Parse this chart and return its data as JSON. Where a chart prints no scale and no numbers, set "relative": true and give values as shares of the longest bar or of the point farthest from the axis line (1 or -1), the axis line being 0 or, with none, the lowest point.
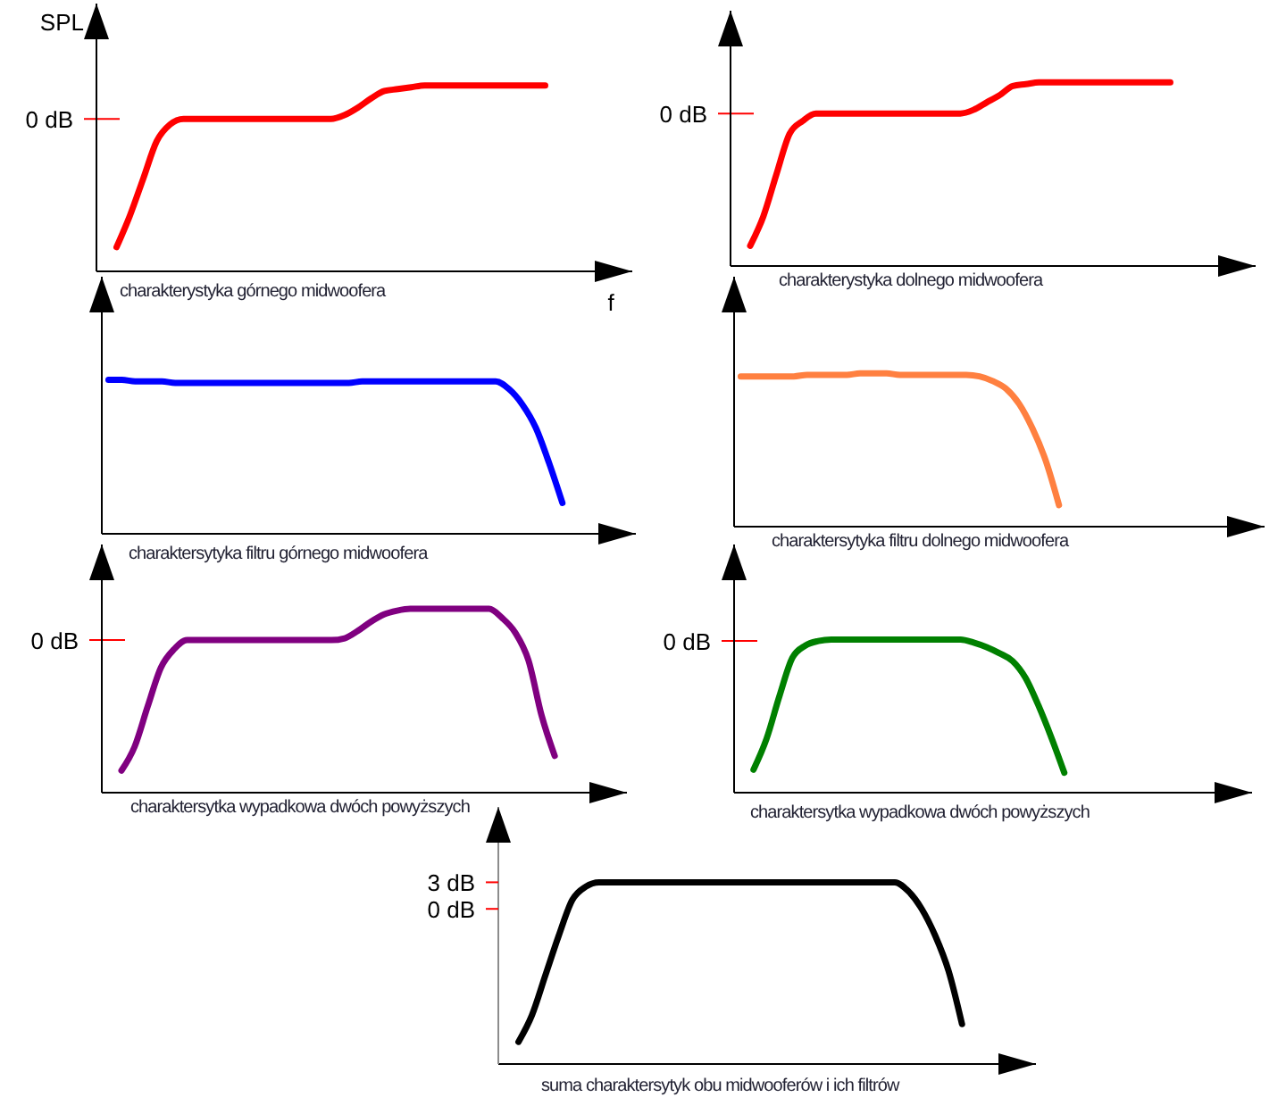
{
  "chart_data": [
    {
      "type": "line",
      "title": "charakterystyka górnego midwoofera",
      "xlabel": "f",
      "ylabel": "SPL",
      "relative": true,
      "categories": [
        null,
        null,
        null,
        null,
        null,
        null,
        null,
        null,
        null,
        null,
        null,
        null,
        null,
        null,
        null,
        null,
        null,
        null,
        null,
        null,
        null,
        null,
        null,
        null,
        null,
        null,
        null,
        null,
        null,
        null,
        null,
        null,
        null,
        null,
        null,
        null,
        null,
        null,
        null,
        null
      ],
      "series": [
        {
          "color": "#ff0000",
          "values": [
            null,
            0.13,
            0.3,
            0.5,
            0.7,
            0.79,
            0.82,
            0.82,
            0.82,
            0.82,
            0.82,
            0.82,
            0.82,
            0.82,
            0.82,
            0.82,
            0.82,
            0.82,
            0.84,
            0.88,
            0.93,
            0.97,
            0.98,
            0.99,
            1,
            1,
            1,
            1,
            1,
            1,
            1,
            1,
            1,
            1,
            null,
            null,
            null,
            null,
            null,
            null
          ]
        }
      ],
      "ref_lines": [
        {
          "axis": "y",
          "value": 0.82,
          "label": "0 dB",
          "color": "#ff0000"
        }
      ]
    },
    {
      "type": "line",
      "title": "charakterystyka dolnego midwoofera",
      "relative": true,
      "categories": [
        null,
        null,
        null,
        null,
        null,
        null,
        null,
        null,
        null,
        null,
        null,
        null,
        null,
        null,
        null,
        null,
        null,
        null,
        null,
        null,
        null,
        null,
        null,
        null,
        null,
        null,
        null,
        null,
        null,
        null,
        null,
        null,
        null,
        null,
        null,
        null,
        null,
        null,
        null,
        null
      ],
      "series": [
        {
          "color": "#ff0000",
          "values": [
            null,
            0.11,
            0.27,
            0.5,
            0.72,
            0.79,
            0.83,
            0.83,
            0.83,
            0.83,
            0.83,
            0.83,
            0.83,
            0.83,
            0.83,
            0.83,
            0.83,
            0.83,
            0.85,
            0.89,
            0.93,
            0.98,
            0.99,
            1,
            1,
            1,
            1,
            1,
            1,
            1,
            1,
            1,
            1,
            1,
            null,
            null,
            null,
            null,
            null,
            null
          ]
        }
      ],
      "ref_lines": [
        {
          "axis": "y",
          "value": 0.83,
          "label": "0 dB",
          "color": "#ff0000"
        }
      ]
    },
    {
      "type": "line",
      "title": "charaktersytyka filtru górnego midwoofera",
      "relative": true,
      "categories": [
        null,
        null,
        null,
        null,
        null,
        null,
        null,
        null,
        null,
        null,
        null,
        null,
        null,
        null,
        null,
        null,
        null,
        null,
        null,
        null,
        null,
        null,
        null,
        null,
        null,
        null,
        null,
        null,
        null,
        null,
        null,
        null,
        null,
        null,
        null,
        null,
        null,
        null,
        null,
        null
      ],
      "series": [
        {
          "color": "#0000ff",
          "values": [
            1,
            1,
            0.99,
            0.99,
            0.99,
            0.98,
            0.98,
            0.98,
            0.98,
            0.98,
            0.98,
            0.98,
            0.98,
            0.98,
            0.98,
            0.98,
            0.98,
            0.98,
            0.98,
            0.99,
            0.99,
            0.99,
            0.99,
            0.99,
            0.99,
            0.99,
            0.99,
            0.99,
            0.99,
            0.99,
            0.94,
            0.84,
            0.69,
            0.46,
            0.2,
            null,
            null,
            null,
            null,
            null
          ]
        }
      ]
    },
    {
      "type": "line",
      "title": "charaktersytyka filtru dolnego midwoofera",
      "relative": true,
      "categories": [
        null,
        null,
        null,
        null,
        null,
        null,
        null,
        null,
        null,
        null,
        null,
        null,
        null,
        null,
        null,
        null,
        null,
        null,
        null,
        null,
        null,
        null,
        null,
        null,
        null,
        null,
        null,
        null,
        null,
        null,
        null,
        null,
        null,
        null,
        null,
        null,
        null,
        null,
        null,
        null
      ],
      "series": [
        {
          "color": "#ff8040",
          "values": [
            0.98,
            0.98,
            0.98,
            0.98,
            0.98,
            0.99,
            0.99,
            0.99,
            0.99,
            1,
            1,
            1,
            0.99,
            0.99,
            0.99,
            0.99,
            0.99,
            0.99,
            0.98,
            0.95,
            0.9,
            0.8,
            0.64,
            0.43,
            0.14,
            null,
            null,
            null,
            null,
            null,
            null,
            null,
            null,
            null,
            null,
            null,
            null,
            null,
            null,
            null
          ]
        }
      ]
    },
    {
      "type": "line",
      "title": "charaktersytka wypadkowa dwóch powyższych",
      "relative": true,
      "categories": [
        null,
        null,
        null,
        null,
        null,
        null,
        null,
        null,
        null,
        null,
        null,
        null,
        null,
        null,
        null,
        null,
        null,
        null,
        null,
        null,
        null,
        null,
        null,
        null,
        null,
        null,
        null,
        null,
        null,
        null,
        null,
        null,
        null,
        null,
        null,
        null,
        null,
        null,
        null,
        null
      ],
      "series": [
        {
          "color": "#800080",
          "values": [
            null,
            0.12,
            0.25,
            0.47,
            0.68,
            0.78,
            0.83,
            0.83,
            0.83,
            0.83,
            0.83,
            0.83,
            0.83,
            0.83,
            0.83,
            0.83,
            0.83,
            0.83,
            0.84,
            0.88,
            0.93,
            0.97,
            0.99,
            1,
            1,
            1,
            1,
            1,
            1,
            1,
            0.95,
            0.87,
            0.72,
            0.42,
            0.2,
            null,
            null,
            null,
            null,
            null
          ]
        }
      ],
      "ref_lines": [
        {
          "axis": "y",
          "value": 0.83,
          "label": "0 dB",
          "color": "#ff0000"
        }
      ]
    },
    {
      "type": "line",
      "title": "charaktersytka wypadkowa dwóch powyższych",
      "relative": true,
      "categories": [
        null,
        null,
        null,
        null,
        null,
        null,
        null,
        null,
        null,
        null,
        null,
        null,
        null,
        null,
        null,
        null,
        null,
        null,
        null,
        null,
        null,
        null,
        null,
        null,
        null,
        null,
        null,
        null,
        null,
        null,
        null,
        null,
        null,
        null,
        null,
        null,
        null,
        null,
        null,
        null
      ],
      "series": [
        {
          "color": "#008000",
          "values": [
            null,
            0.15,
            0.35,
            0.63,
            0.88,
            0.96,
            0.99,
            1,
            1,
            1,
            1,
            1,
            1,
            1,
            1,
            1,
            1,
            1,
            0.98,
            0.95,
            0.91,
            0.86,
            0.75,
            0.57,
            0.36,
            0.13,
            null,
            null,
            null,
            null,
            null,
            null,
            null,
            null,
            null,
            null,
            null,
            null,
            null,
            null
          ]
        }
      ],
      "ref_lines": [
        {
          "axis": "y",
          "value": 0.99,
          "label": "0 dB",
          "color": "#ff0000"
        }
      ]
    },
    {
      "type": "line",
      "title": "suma charaktersytyk obu midwooferów i ich filtrów",
      "ylim": [
        -17.5,
        11.5
      ],
      "yticks": [
        {
          "value": 0,
          "label": "0 dB"
        },
        {
          "value": 3,
          "label": "3 dB"
        }
      ],
      "categories": [
        null,
        null,
        null,
        null,
        null,
        null,
        null,
        null,
        null,
        null,
        null,
        null,
        null,
        null,
        null,
        null,
        null,
        null,
        null,
        null,
        null,
        null,
        null,
        null,
        null,
        null,
        null,
        null,
        null,
        null,
        null,
        null,
        null,
        null,
        null,
        null,
        null,
        null,
        null,
        null
      ],
      "series": [
        {
          "color": "#000000",
          "values": [
            null,
            -15,
            -12,
            -7.5,
            -3,
            1,
            2.5,
            3,
            3,
            3,
            3,
            3,
            3,
            3,
            3,
            3,
            3,
            3,
            3,
            3,
            3,
            3,
            3,
            3,
            3,
            3,
            3,
            3,
            3,
            3,
            2,
            0,
            -3,
            -7,
            -13,
            null,
            null,
            null,
            null,
            null
          ]
        }
      ]
    }
  ]
}
